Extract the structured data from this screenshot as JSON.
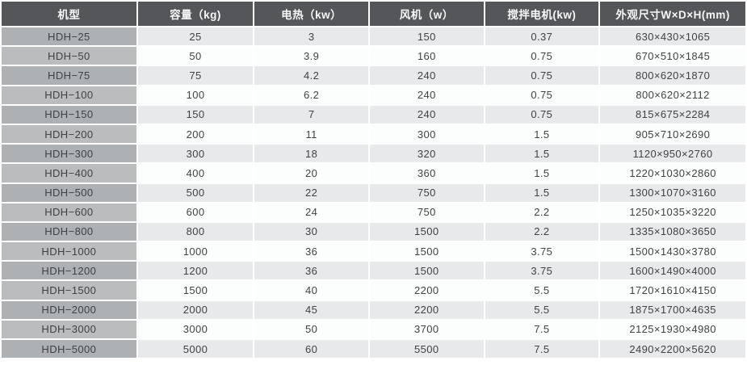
{
  "colors": {
    "header_background": "#54565a",
    "header_text": "#f7f8f8",
    "model_column_odd": "#aeb1b4",
    "model_column_even": "#babcbe",
    "data_cell_odd": "#e7e9ea",
    "data_cell_even": "#fcfdfd",
    "cell_text": "#3f4245",
    "grid_gap": "#ffffff"
  },
  "table": {
    "headers": [
      "机型",
      "容量（kg)",
      "电热（kw）",
      "风机（w）",
      "搅拌电机(kw)",
      "外观尺寸W×D×H(mm)"
    ],
    "rows": [
      [
        "HDH−25",
        "25",
        "3",
        "150",
        "0.37",
        "630×430×1065"
      ],
      [
        "HDH−50",
        "50",
        "3.9",
        "160",
        "0.75",
        "670×510×1845"
      ],
      [
        "HDH−75",
        "75",
        "4.2",
        "240",
        "0.75",
        "800×620×1870"
      ],
      [
        "HDH−100",
        "100",
        "6.2",
        "240",
        "0.75",
        "800×620×2112"
      ],
      [
        "HDH−150",
        "150",
        "7",
        "240",
        "0.75",
        "815×675×2284"
      ],
      [
        "HDH−200",
        "200",
        "11",
        "300",
        "1.5",
        "905×710×2690"
      ],
      [
        "HDH−300",
        "300",
        "18",
        "320",
        "1.5",
        "1120×950×2760"
      ],
      [
        "HDH−400",
        "400",
        "20",
        "360",
        "1.5",
        "1220×1030×2860"
      ],
      [
        "HDH−500",
        "500",
        "22",
        "750",
        "1.5",
        "1300×1070×3160"
      ],
      [
        "HDH−600",
        "600",
        "24",
        "750",
        "2.2",
        "1250×1035×3220"
      ],
      [
        "HDH−800",
        "800",
        "30",
        "1500",
        "2.2",
        "1335×1080×3650"
      ],
      [
        "HDH−1000",
        "1000",
        "36",
        "1500",
        "3.75",
        "1500×1430×3780"
      ],
      [
        "HDH−1200",
        "1200",
        "36",
        "1500",
        "3.75",
        "1600×1490×4000"
      ],
      [
        "HDH−1500",
        "1500",
        "40",
        "2200",
        "5.5",
        "1720×1610×4150"
      ],
      [
        "HDH−2000",
        "2000",
        "45",
        "2200",
        "5.5",
        "1875×1700×4635"
      ],
      [
        "HDH−3000",
        "3000",
        "50",
        "3700",
        "7.5",
        "2125×1930×4980"
      ],
      [
        "HDH−5000",
        "5000",
        "60",
        "5500",
        "7.5",
        "2490×2200×5620"
      ]
    ]
  }
}
